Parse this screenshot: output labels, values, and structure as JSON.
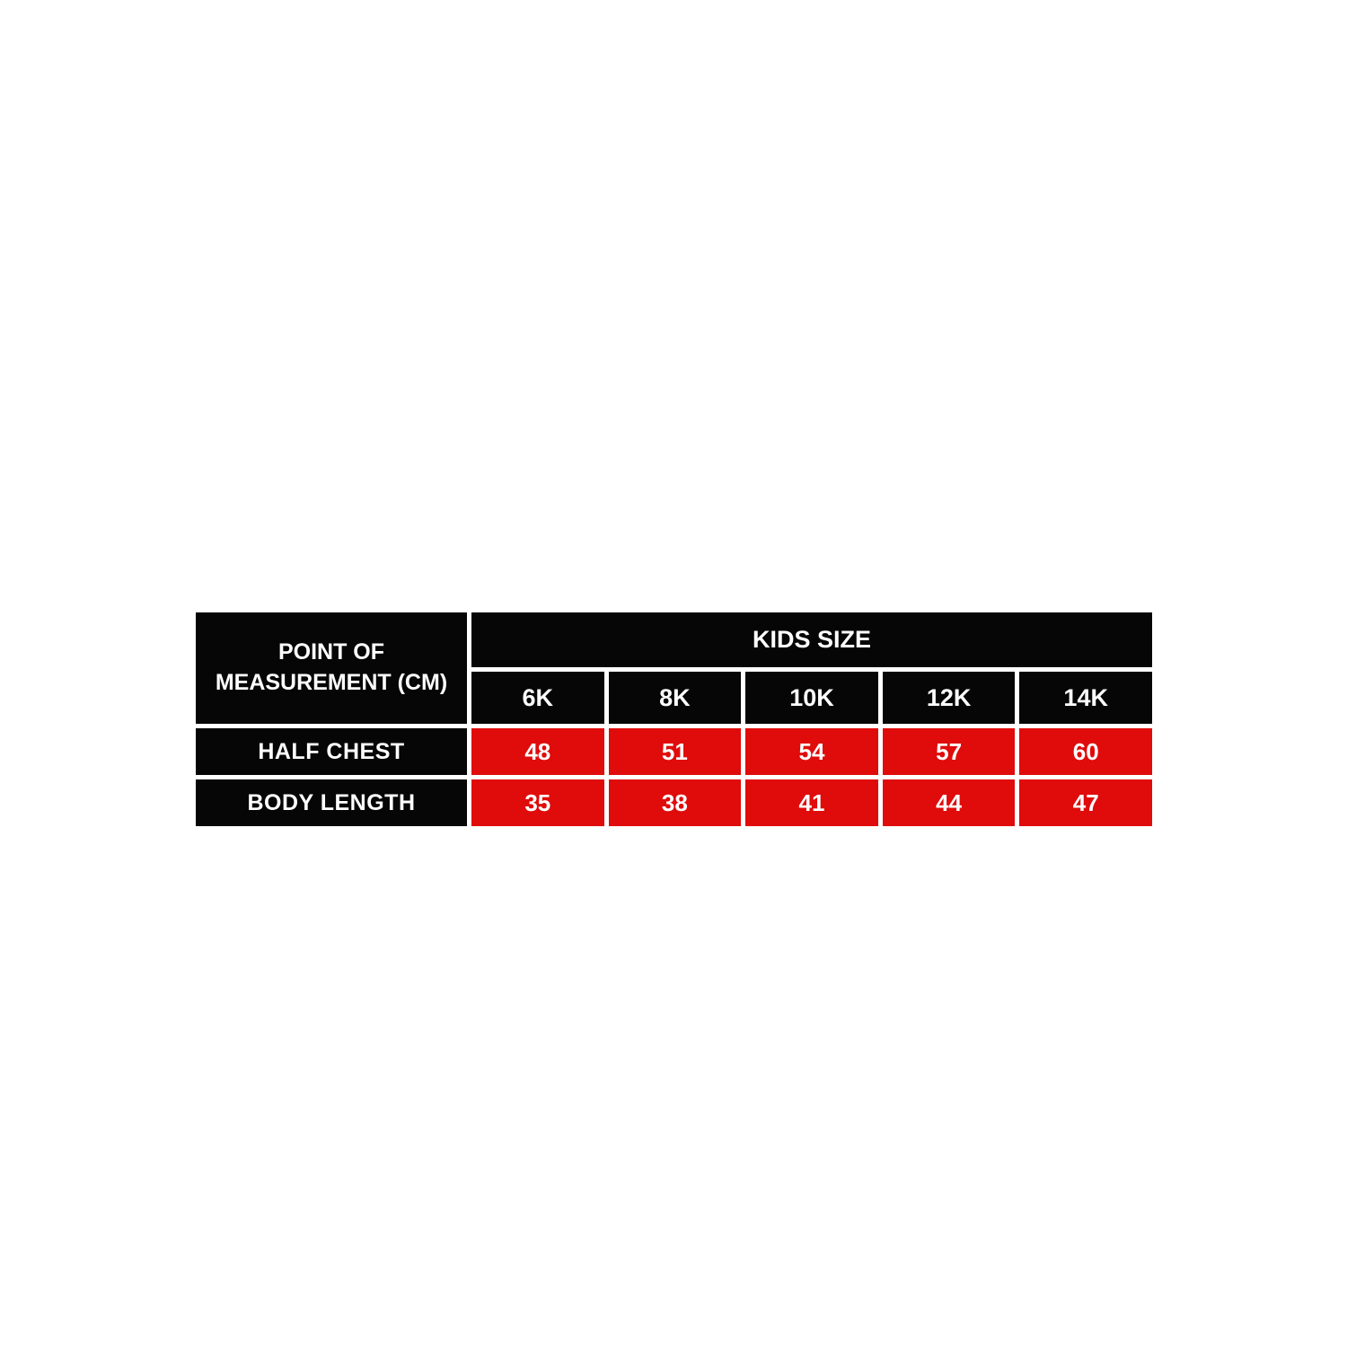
{
  "chart_data": {
    "type": "table",
    "title": "KIDS SIZE",
    "corner_header": "POINT OF MEASUREMENT (CM)",
    "group_header": "KIDS SIZE",
    "categories": [
      "6K",
      "8K",
      "10K",
      "12K",
      "14K"
    ],
    "series": [
      {
        "name": "HALF CHEST",
        "values": [
          48,
          51,
          54,
          57,
          60
        ]
      },
      {
        "name": "BODY LENGTH",
        "values": [
          35,
          38,
          41,
          44,
          47
        ]
      }
    ],
    "layout": {
      "header_bg": "#060606",
      "value_bg": "#e00b0b",
      "text_color": "#ffffff",
      "divider_color": "#ffffff",
      "grid": true
    }
  },
  "table": {
    "corner_header": "POINT OF MEASUREMENT (CM)",
    "group_header": "KIDS SIZE",
    "sizes": [
      "6K",
      "8K",
      "10K",
      "12K",
      "14K"
    ],
    "rows": [
      {
        "label": "HALF CHEST",
        "values": [
          "48",
          "51",
          "54",
          "57",
          "60"
        ]
      },
      {
        "label": "BODY LENGTH",
        "values": [
          "35",
          "38",
          "41",
          "44",
          "47"
        ]
      }
    ]
  }
}
